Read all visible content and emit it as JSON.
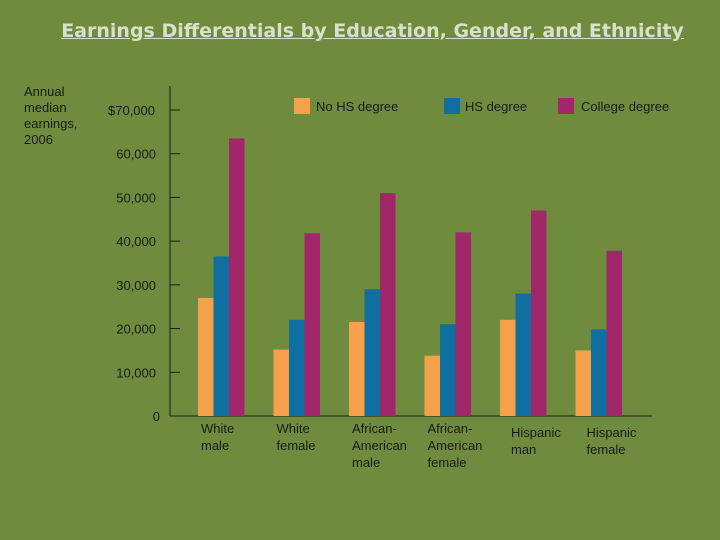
{
  "chart_data": {
    "type": "bar",
    "title": "Earnings Differentials by Education, Gender, and Ethnicity",
    "ylabel": "Annual\nmedian\nearnings,\n2006",
    "xlabel": "",
    "ylim": [
      0,
      70000
    ],
    "y_ticks": [
      {
        "value": 70000,
        "label": "$70,000"
      },
      {
        "value": 60000,
        "label": "60,000"
      },
      {
        "value": 50000,
        "label": "50,000"
      },
      {
        "value": 40000,
        "label": "40,000"
      },
      {
        "value": 30000,
        "label": "30,000"
      },
      {
        "value": 20000,
        "label": "20,000"
      },
      {
        "value": 10000,
        "label": "10,000"
      },
      {
        "value": 0,
        "label": "0"
      }
    ],
    "categories": [
      [
        "White",
        "male"
      ],
      [
        "White",
        "female"
      ],
      [
        "African-",
        "American",
        "male"
      ],
      [
        "African-",
        "American",
        "female"
      ],
      [
        "Hispanic",
        "man"
      ],
      [
        "Hispanic",
        "female"
      ]
    ],
    "series": [
      {
        "name": "No HS degree",
        "color": "#f5a04a",
        "values": [
          27000,
          15200,
          21500,
          13800,
          22000,
          15000
        ]
      },
      {
        "name": "HS degree",
        "color": "#0e6fa0",
        "values": [
          36500,
          22000,
          29000,
          21000,
          28000,
          19800
        ]
      },
      {
        "name": "College degree",
        "color": "#a0276a",
        "values": [
          63500,
          41800,
          51000,
          42000,
          47000,
          37800
        ]
      }
    ],
    "grid": false,
    "legend_position": "top"
  }
}
